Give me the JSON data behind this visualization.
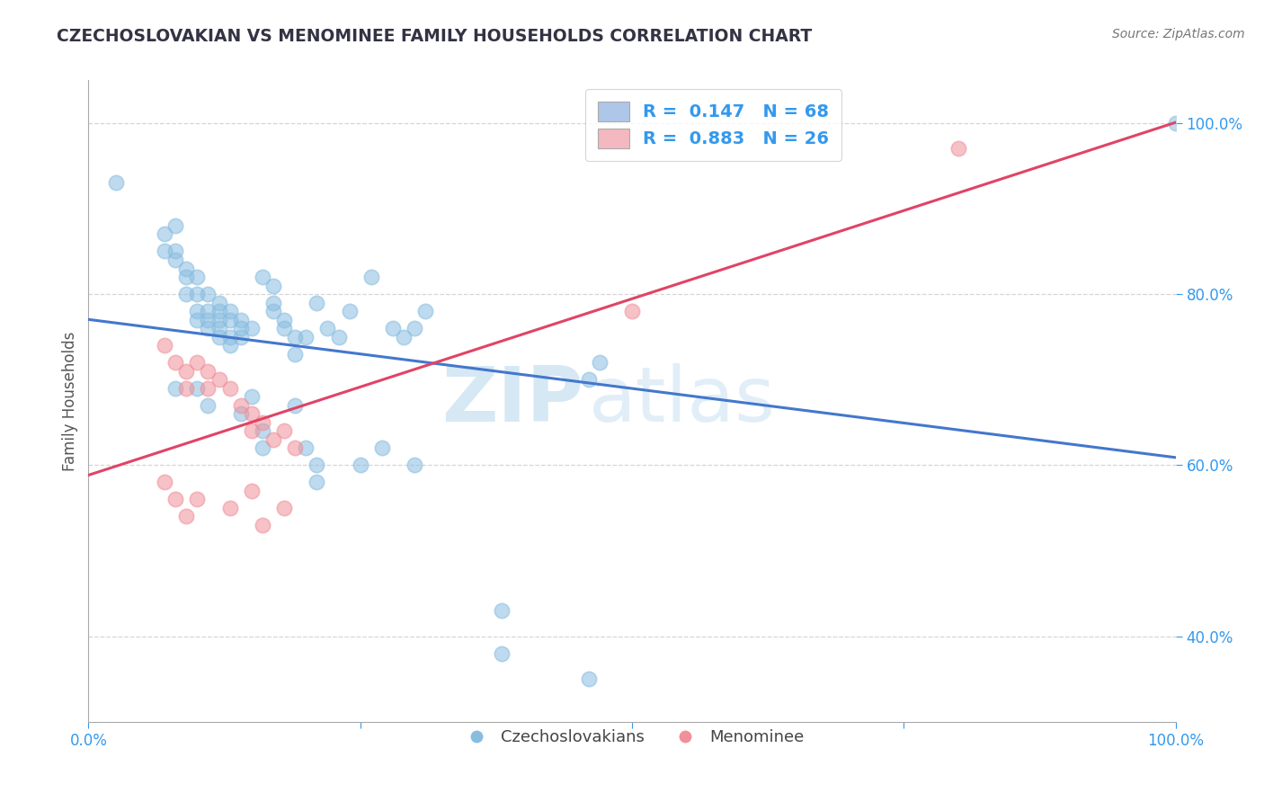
{
  "title": "CZECHOSLOVAKIAN VS MENOMINEE FAMILY HOUSEHOLDS CORRELATION CHART",
  "source": "Source: ZipAtlas.com",
  "ylabel": "Family Households",
  "legend_label1": "Czechoslovakians",
  "legend_label2": "Menominee",
  "xlim": [
    0.0,
    1.0
  ],
  "ylim_pct": [
    0.3,
    1.05
  ],
  "background_color": "#ffffff",
  "grid_color": "#cccccc",
  "blue_color": "#89bde0",
  "pink_color": "#f0909a",
  "blue_line_color": "#4477cc",
  "pink_line_color": "#e04466",
  "watermark_zip": "ZIP",
  "watermark_atlas": "atlas",
  "blue_scatter": [
    [
      0.025,
      0.93
    ],
    [
      0.07,
      0.87
    ],
    [
      0.07,
      0.85
    ],
    [
      0.08,
      0.88
    ],
    [
      0.08,
      0.85
    ],
    [
      0.08,
      0.84
    ],
    [
      0.09,
      0.83
    ],
    [
      0.09,
      0.82
    ],
    [
      0.09,
      0.8
    ],
    [
      0.1,
      0.82
    ],
    [
      0.1,
      0.8
    ],
    [
      0.1,
      0.78
    ],
    [
      0.1,
      0.77
    ],
    [
      0.11,
      0.8
    ],
    [
      0.11,
      0.78
    ],
    [
      0.11,
      0.77
    ],
    [
      0.11,
      0.76
    ],
    [
      0.12,
      0.79
    ],
    [
      0.12,
      0.78
    ],
    [
      0.12,
      0.77
    ],
    [
      0.12,
      0.76
    ],
    [
      0.12,
      0.75
    ],
    [
      0.13,
      0.78
    ],
    [
      0.13,
      0.77
    ],
    [
      0.13,
      0.75
    ],
    [
      0.13,
      0.74
    ],
    [
      0.14,
      0.77
    ],
    [
      0.14,
      0.76
    ],
    [
      0.14,
      0.75
    ],
    [
      0.15,
      0.76
    ],
    [
      0.16,
      0.82
    ],
    [
      0.17,
      0.81
    ],
    [
      0.17,
      0.79
    ],
    [
      0.17,
      0.78
    ],
    [
      0.18,
      0.77
    ],
    [
      0.18,
      0.76
    ],
    [
      0.19,
      0.75
    ],
    [
      0.19,
      0.73
    ],
    [
      0.2,
      0.75
    ],
    [
      0.21,
      0.79
    ],
    [
      0.22,
      0.76
    ],
    [
      0.23,
      0.75
    ],
    [
      0.24,
      0.78
    ],
    [
      0.26,
      0.82
    ],
    [
      0.28,
      0.76
    ],
    [
      0.29,
      0.75
    ],
    [
      0.3,
      0.76
    ],
    [
      0.31,
      0.78
    ],
    [
      0.08,
      0.69
    ],
    [
      0.1,
      0.69
    ],
    [
      0.11,
      0.67
    ],
    [
      0.14,
      0.66
    ],
    [
      0.15,
      0.68
    ],
    [
      0.16,
      0.64
    ],
    [
      0.16,
      0.62
    ],
    [
      0.19,
      0.67
    ],
    [
      0.2,
      0.62
    ],
    [
      0.21,
      0.6
    ],
    [
      0.21,
      0.58
    ],
    [
      0.25,
      0.6
    ],
    [
      0.27,
      0.62
    ],
    [
      0.3,
      0.6
    ],
    [
      0.46,
      0.7
    ],
    [
      0.47,
      0.72
    ],
    [
      0.38,
      0.43
    ],
    [
      0.38,
      0.38
    ],
    [
      0.46,
      0.35
    ],
    [
      1.0,
      1.0
    ]
  ],
  "pink_scatter": [
    [
      0.07,
      0.74
    ],
    [
      0.08,
      0.72
    ],
    [
      0.09,
      0.71
    ],
    [
      0.09,
      0.69
    ],
    [
      0.1,
      0.72
    ],
    [
      0.11,
      0.71
    ],
    [
      0.11,
      0.69
    ],
    [
      0.12,
      0.7
    ],
    [
      0.13,
      0.69
    ],
    [
      0.14,
      0.67
    ],
    [
      0.15,
      0.66
    ],
    [
      0.15,
      0.64
    ],
    [
      0.16,
      0.65
    ],
    [
      0.17,
      0.63
    ],
    [
      0.18,
      0.64
    ],
    [
      0.19,
      0.62
    ],
    [
      0.1,
      0.56
    ],
    [
      0.13,
      0.55
    ],
    [
      0.15,
      0.57
    ],
    [
      0.16,
      0.53
    ],
    [
      0.18,
      0.55
    ],
    [
      0.07,
      0.58
    ],
    [
      0.08,
      0.56
    ],
    [
      0.09,
      0.54
    ],
    [
      0.8,
      0.97
    ],
    [
      0.5,
      0.78
    ]
  ]
}
